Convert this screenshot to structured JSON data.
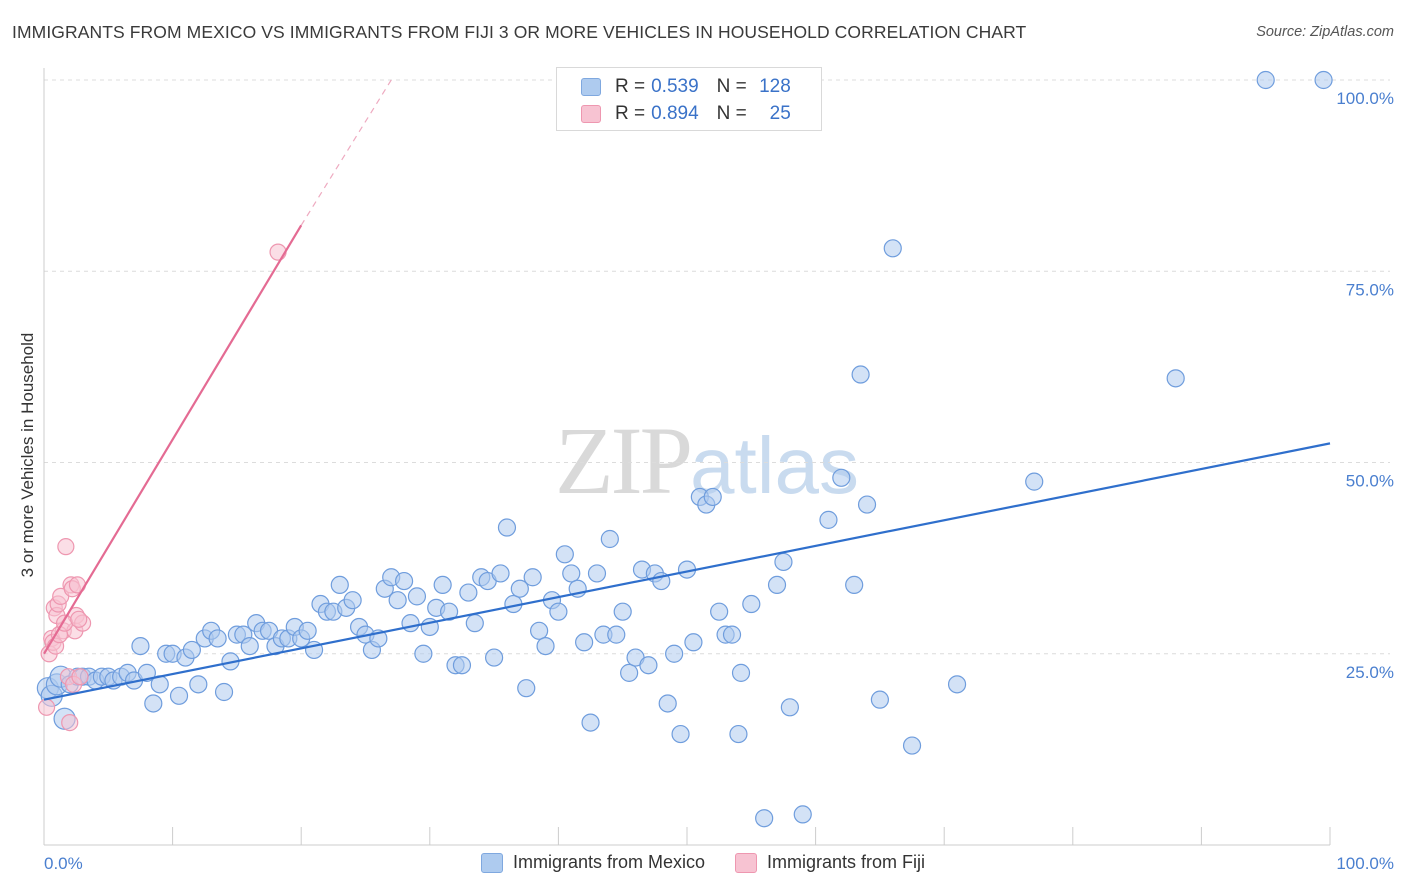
{
  "header": {
    "title": "IMMIGRANTS FROM MEXICO VS IMMIGRANTS FROM FIJI 3 OR MORE VEHICLES IN HOUSEHOLD CORRELATION CHART",
    "source": "Source: ZipAtlas.com"
  },
  "watermark": {
    "zip": "ZIP",
    "atlas": "atlas"
  },
  "legend": {
    "rows": [
      {
        "r_label": "R =",
        "r_value": "0.539",
        "n_label": "N =",
        "n_value": "128",
        "color": "#aecbef",
        "border": "#7fa8df"
      },
      {
        "r_label": "R =",
        "r_value": "0.894",
        "n_label": "N =",
        "n_value": "25",
        "color": "#f7c3d2",
        "border": "#ee97b0"
      }
    ]
  },
  "chart_data": {
    "type": "scatter",
    "title": "IMMIGRANTS FROM MEXICO VS IMMIGRANTS FROM FIJI 3 OR MORE VEHICLES IN HOUSEHOLD CORRELATION CHART",
    "xlabel": "",
    "ylabel": "3 or more Vehicles in Household",
    "xlim": [
      0,
      100
    ],
    "ylim": [
      0,
      100
    ],
    "x_tick_labels": [
      "0.0%",
      "100.0%"
    ],
    "y_tick_labels": [
      "25.0%",
      "50.0%",
      "75.0%",
      "100.0%"
    ],
    "y_ticks": [
      25,
      50,
      75,
      100
    ],
    "grid": true,
    "legend_position": "bottom",
    "series": [
      {
        "name": "Immigrants from Mexico",
        "color": "#6f9ddd",
        "fill": "#aecbef",
        "trend": {
          "x": [
            0,
            100
          ],
          "y": [
            19,
            52.5
          ],
          "color": "#2f6fcc"
        },
        "points": [
          [
            0.3,
            20.5
          ],
          [
            0.6,
            19.5
          ],
          [
            1,
            21
          ],
          [
            1.3,
            22
          ],
          [
            1.6,
            16.5
          ],
          [
            2,
            21
          ],
          [
            2.6,
            22
          ],
          [
            3,
            22
          ],
          [
            3.5,
            22
          ],
          [
            4,
            21.5
          ],
          [
            4.5,
            22
          ],
          [
            5,
            22
          ],
          [
            5.4,
            21.5
          ],
          [
            6,
            22
          ],
          [
            6.5,
            22.5
          ],
          [
            7,
            21.5
          ],
          [
            7.5,
            26
          ],
          [
            8,
            22.5
          ],
          [
            8.5,
            18.5
          ],
          [
            9,
            21
          ],
          [
            9.5,
            25
          ],
          [
            10,
            25
          ],
          [
            10.5,
            19.5
          ],
          [
            11,
            24.5
          ],
          [
            11.5,
            25.5
          ],
          [
            12,
            21
          ],
          [
            12.5,
            27
          ],
          [
            13,
            28
          ],
          [
            13.5,
            27
          ],
          [
            14,
            20
          ],
          [
            14.5,
            24
          ],
          [
            15,
            27.5
          ],
          [
            15.5,
            27.5
          ],
          [
            16,
            26
          ],
          [
            16.5,
            29
          ],
          [
            17,
            28
          ],
          [
            17.5,
            28
          ],
          [
            18,
            26
          ],
          [
            18.5,
            27
          ],
          [
            19,
            27
          ],
          [
            19.5,
            28.5
          ],
          [
            20,
            27
          ],
          [
            20.5,
            28
          ],
          [
            21,
            25.5
          ],
          [
            21.5,
            31.5
          ],
          [
            22,
            30.5
          ],
          [
            22.5,
            30.5
          ],
          [
            23,
            34
          ],
          [
            23.5,
            31
          ],
          [
            24,
            32
          ],
          [
            24.5,
            28.5
          ],
          [
            25,
            27.5
          ],
          [
            25.5,
            25.5
          ],
          [
            26,
            27
          ],
          [
            26.5,
            33.5
          ],
          [
            27,
            35
          ],
          [
            27.5,
            32
          ],
          [
            28,
            34.5
          ],
          [
            28.5,
            29
          ],
          [
            29,
            32.5
          ],
          [
            29.5,
            25
          ],
          [
            30,
            28.5
          ],
          [
            30.5,
            31
          ],
          [
            31,
            34
          ],
          [
            31.5,
            30.5
          ],
          [
            32,
            23.5
          ],
          [
            32.5,
            23.5
          ],
          [
            33,
            33
          ],
          [
            33.5,
            29
          ],
          [
            34,
            35
          ],
          [
            34.5,
            34.5
          ],
          [
            35,
            24.5
          ],
          [
            35.5,
            35.5
          ],
          [
            36,
            41.5
          ],
          [
            36.5,
            31.5
          ],
          [
            37,
            33.5
          ],
          [
            37.5,
            20.5
          ],
          [
            38,
            35
          ],
          [
            38.5,
            28
          ],
          [
            39,
            26
          ],
          [
            39.5,
            32
          ],
          [
            40,
            30.5
          ],
          [
            40.5,
            38
          ],
          [
            41,
            35.5
          ],
          [
            41.5,
            33.5
          ],
          [
            42,
            26.5
          ],
          [
            42.5,
            16
          ],
          [
            43,
            35.5
          ],
          [
            43.5,
            27.5
          ],
          [
            44,
            40
          ],
          [
            44.5,
            27.5
          ],
          [
            45,
            30.5
          ],
          [
            45.5,
            22.5
          ],
          [
            46,
            24.5
          ],
          [
            46.5,
            36
          ],
          [
            47,
            23.5
          ],
          [
            47.5,
            35.5
          ],
          [
            48,
            34.5
          ],
          [
            48.5,
            18.5
          ],
          [
            49,
            25
          ],
          [
            49.5,
            14.5
          ],
          [
            50,
            36
          ],
          [
            50.5,
            26.5
          ],
          [
            51,
            45.5
          ],
          [
            51.5,
            44.5
          ],
          [
            52,
            45.5
          ],
          [
            52.5,
            30.5
          ],
          [
            53,
            27.5
          ],
          [
            53.5,
            27.5
          ],
          [
            54,
            14.5
          ],
          [
            54.2,
            22.5
          ],
          [
            55,
            31.5
          ],
          [
            56,
            3.5
          ],
          [
            57,
            34
          ],
          [
            57.5,
            37
          ],
          [
            58,
            18
          ],
          [
            59,
            4
          ],
          [
            61,
            42.5
          ],
          [
            62,
            48
          ],
          [
            63,
            34
          ],
          [
            63.5,
            61.5
          ],
          [
            64,
            44.5
          ],
          [
            65,
            19
          ],
          [
            66,
            78
          ],
          [
            67.5,
            13
          ],
          [
            71,
            21
          ],
          [
            77,
            47.5
          ],
          [
            88,
            61
          ],
          [
            95,
            100
          ],
          [
            99.5,
            100
          ]
        ]
      },
      {
        "name": "Immigrants from Fiji",
        "color": "#ee97b0",
        "fill": "#f7c3d2",
        "trend": {
          "x": [
            0,
            20
          ],
          "y": [
            25,
            81
          ],
          "extend_to": [
            27,
            100
          ],
          "color": "#e46b93"
        },
        "points": [
          [
            0.2,
            18
          ],
          [
            0.4,
            25
          ],
          [
            0.6,
            27
          ],
          [
            0.7,
            26.5
          ],
          [
            0.8,
            31
          ],
          [
            1,
            30
          ],
          [
            1.1,
            31.5
          ],
          [
            1.3,
            32.5
          ],
          [
            1.5,
            28
          ],
          [
            1.7,
            39
          ],
          [
            1.9,
            22
          ],
          [
            2,
            16
          ],
          [
            2.1,
            34
          ],
          [
            2.2,
            33.5
          ],
          [
            2.3,
            21
          ],
          [
            2.4,
            28
          ],
          [
            2.5,
            30
          ],
          [
            2.6,
            34
          ],
          [
            2.8,
            22
          ],
          [
            3,
            29
          ],
          [
            0.9,
            26
          ],
          [
            1.2,
            27.5
          ],
          [
            1.6,
            29
          ],
          [
            2.7,
            29.5
          ],
          [
            18.2,
            77.5
          ]
        ]
      }
    ]
  }
}
